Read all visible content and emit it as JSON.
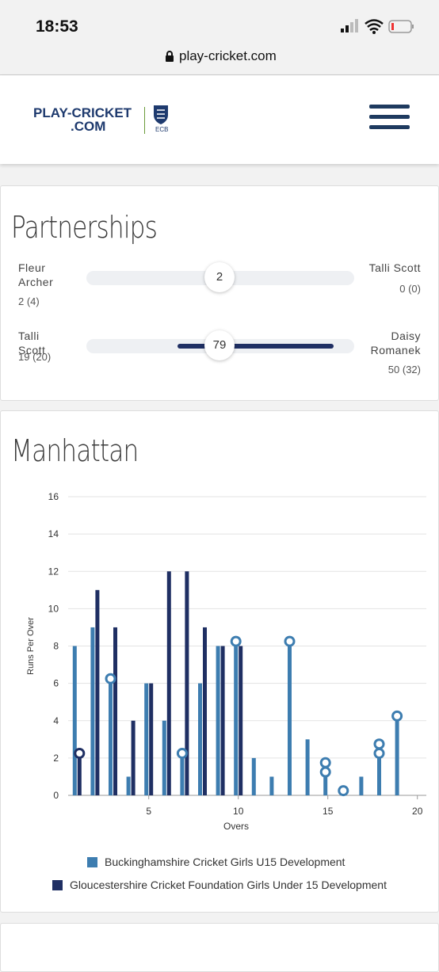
{
  "status_bar": {
    "time": "18:53",
    "url": "play-cricket.com"
  },
  "header": {
    "logo_top": "PLAY-CRICKET",
    "logo_bottom": ".COM",
    "badge": "ECB"
  },
  "partnerships": {
    "title": "Partnerships",
    "rows": [
      {
        "left": {
          "name": "Fleur Archer",
          "runs": 2,
          "score": "2 (4)"
        },
        "total": 2,
        "right": {
          "name": "Talli Scott",
          "runs": 0,
          "score": "0 (0)"
        }
      },
      {
        "left": {
          "name": "Talli Scott",
          "runs": 19,
          "score": "19 (20)"
        },
        "total": 79,
        "right": {
          "name": "Daisy Romanek",
          "runs": 50,
          "score": "50 (32)"
        }
      }
    ]
  },
  "chart_data": {
    "type": "bar",
    "title": "Manhattan",
    "x": [
      1,
      2,
      3,
      4,
      5,
      6,
      7,
      8,
      9,
      10,
      11,
      12,
      13,
      14,
      15,
      16,
      17,
      18,
      19
    ],
    "series": [
      {
        "name": "Buckinghamshire Cricket Girls U15 Development",
        "color": "#3d7db0",
        "values": [
          8,
          9,
          6,
          1,
          6,
          4,
          2,
          6,
          8,
          8,
          2,
          1,
          8,
          3,
          2,
          0,
          1,
          2,
          4
        ]
      },
      {
        "name": "Gloucestershire Cricket Foundation Girls Under 15 Development",
        "color": "#1f2f63",
        "values": [
          2,
          11,
          9,
          4,
          6,
          12,
          12,
          9,
          8,
          8,
          null,
          null,
          null,
          null,
          null,
          null,
          null,
          null,
          null
        ]
      }
    ],
    "wickets": [
      {
        "over": 1,
        "series": 1,
        "y": 2.25
      },
      {
        "over": 3,
        "series": 0,
        "y": 6.25
      },
      {
        "over": 7,
        "series": 0,
        "y": 2.25
      },
      {
        "over": 10,
        "series": 0,
        "y": 8.25
      },
      {
        "over": 13,
        "series": 0,
        "y": 8.25
      },
      {
        "over": 15,
        "series": 0,
        "y": 1.75
      },
      {
        "over": 15,
        "series": 0,
        "y": 1.25
      },
      {
        "over": 16,
        "series": 0,
        "y": 0.25
      },
      {
        "over": 18,
        "series": 0,
        "y": 2.75
      },
      {
        "over": 18,
        "series": 0,
        "y": 2.25
      },
      {
        "over": 19,
        "series": 0,
        "y": 4.25
      }
    ],
    "xlim": [
      0.5,
      20.5
    ],
    "xticks": [
      5,
      10,
      15,
      20
    ],
    "ylim": [
      0,
      16
    ],
    "yticks": [
      0,
      2,
      4,
      6,
      8,
      10,
      12,
      14,
      16
    ],
    "xlabel": "Overs",
    "ylabel": "Runs Per Over",
    "grid": true,
    "legend": "bottom"
  }
}
